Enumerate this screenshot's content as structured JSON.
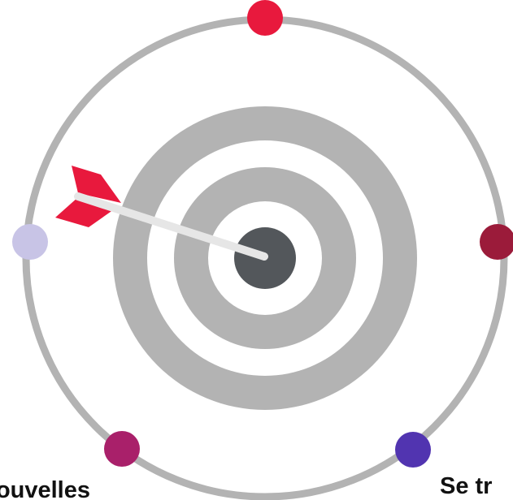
{
  "labels": {
    "left": "Nouvelles",
    "right": "Se tr"
  },
  "colors": {
    "ring": "#b3b3b3",
    "target_gray": "#b3b3b3",
    "bullseye": "#53575b",
    "arrow_shaft": "#e6e6e6",
    "arrow_fletching": "#e8193d",
    "dot_top": "#e8193d",
    "dot_right": "#9b1b3a",
    "dot_bottom_right": "#5134b0",
    "dot_bottom_left": "#a9206a",
    "dot_left": "#c8c4e6"
  },
  "icons": {
    "center": "target-icon",
    "pointer": "arrow-icon"
  }
}
